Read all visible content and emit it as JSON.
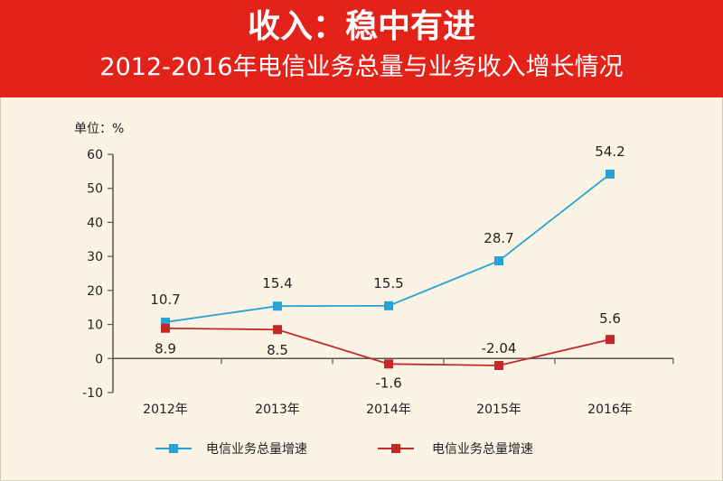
{
  "header": {
    "title": "收入：稳中有进",
    "subtitle": "2012-2016年电信业务总量与业务收入增长情况"
  },
  "colors": {
    "header_bg": "#e3231a",
    "series_blue": "#29a3d6",
    "series_red": "#c62828"
  },
  "chart_data": {
    "type": "line",
    "title": "收入：稳中有进",
    "subtitle": "2012-2016年电信业务总量与业务收入增长情况",
    "ylabel": "单位：%",
    "xlabel": "",
    "categories": [
      "2012年",
      "2013年",
      "2014年",
      "2015年",
      "2016年"
    ],
    "ylim": [
      -10,
      60
    ],
    "yticks": [
      60,
      50,
      40,
      30,
      20,
      10,
      0,
      -10
    ],
    "ytick_labels": [
      "60",
      "50",
      "40",
      "30",
      "20",
      "10",
      "0",
      "-10"
    ],
    "series": [
      {
        "name": "电信业务总量增速",
        "color": "#29a3d6",
        "marker": "square",
        "values": [
          10.7,
          15.4,
          15.5,
          28.7,
          54.2
        ],
        "labels": [
          "10.7",
          "15.4",
          "15.5",
          "28.7",
          "54.2"
        ]
      },
      {
        "name": "电信业务总量增速",
        "color": "#c62828",
        "marker": "square",
        "values": [
          8.9,
          8.5,
          -1.6,
          -2.04,
          5.6
        ],
        "labels": [
          "8.9",
          "8.5",
          "-1.6",
          "-2.04",
          "5.6"
        ]
      }
    ],
    "grid": false,
    "legend_position": "bottom"
  }
}
